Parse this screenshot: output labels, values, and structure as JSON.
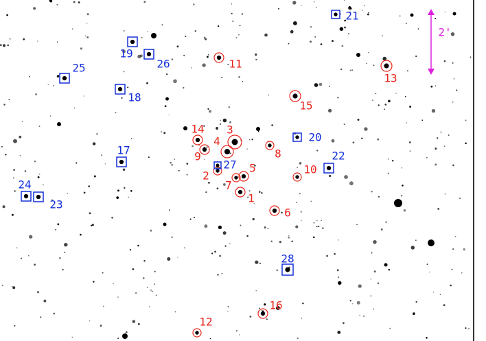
{
  "markers": [
    {
      "label": "1"
    },
    {
      "label": "2"
    },
    {
      "label": "3"
    },
    {
      "label": "4"
    },
    {
      "label": "5"
    },
    {
      "label": "6"
    },
    {
      "label": "7"
    },
    {
      "label": "8"
    },
    {
      "label": "9"
    },
    {
      "label": "10"
    },
    {
      "label": "11"
    },
    {
      "label": "12"
    },
    {
      "label": "13"
    },
    {
      "label": "14"
    },
    {
      "label": "15"
    },
    {
      "label": "16"
    },
    {
      "label": "17"
    },
    {
      "label": "18"
    },
    {
      "label": "19"
    },
    {
      "label": "20"
    },
    {
      "label": "21"
    },
    {
      "label": "22"
    },
    {
      "label": "23"
    },
    {
      "label": "24"
    },
    {
      "label": "25"
    },
    {
      "label": "26"
    },
    {
      "label": "27"
    },
    {
      "label": "28"
    }
  ],
  "scale_label": "2'"
}
